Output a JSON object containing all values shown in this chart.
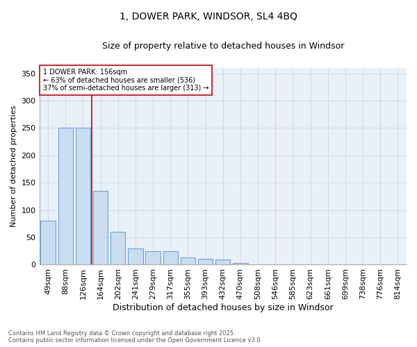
{
  "title": "1, DOWER PARK, WINDSOR, SL4 4BQ",
  "subtitle": "Size of property relative to detached houses in Windsor",
  "xlabel": "Distribution of detached houses by size in Windsor",
  "ylabel": "Number of detached properties",
  "categories": [
    "49sqm",
    "88sqm",
    "126sqm",
    "164sqm",
    "202sqm",
    "241sqm",
    "279sqm",
    "317sqm",
    "355sqm",
    "393sqm",
    "432sqm",
    "470sqm",
    "508sqm",
    "546sqm",
    "585sqm",
    "623sqm",
    "661sqm",
    "699sqm",
    "738sqm",
    "776sqm",
    "814sqm"
  ],
  "values": [
    80,
    251,
    251,
    135,
    60,
    30,
    25,
    25,
    13,
    11,
    9,
    3,
    1,
    0,
    0,
    0,
    0,
    0,
    0,
    0,
    0
  ],
  "bar_color": "#c9ddf0",
  "bar_edge_color": "#5b9bd5",
  "grid_color": "#d0d8e4",
  "background_color": "#eaf0f8",
  "vline_color": "#cc0000",
  "vline_x": 2.5,
  "annotation_text": "1 DOWER PARK: 156sqm\n← 63% of detached houses are smaller (536)\n37% of semi-detached houses are larger (313) →",
  "annotation_box_color": "#cc0000",
  "footer_line1": "Contains HM Land Registry data © Crown copyright and database right 2025.",
  "footer_line2": "Contains public sector information licensed under the Open Government Licence v3.0.",
  "ylim": [
    0,
    360
  ],
  "yticks": [
    0,
    50,
    100,
    150,
    200,
    250,
    300,
    350
  ],
  "title_fontsize": 10,
  "subtitle_fontsize": 9,
  "xlabel_fontsize": 9,
  "ylabel_fontsize": 8,
  "tick_fontsize": 8,
  "annotation_fontsize": 7,
  "footer_fontsize": 6
}
